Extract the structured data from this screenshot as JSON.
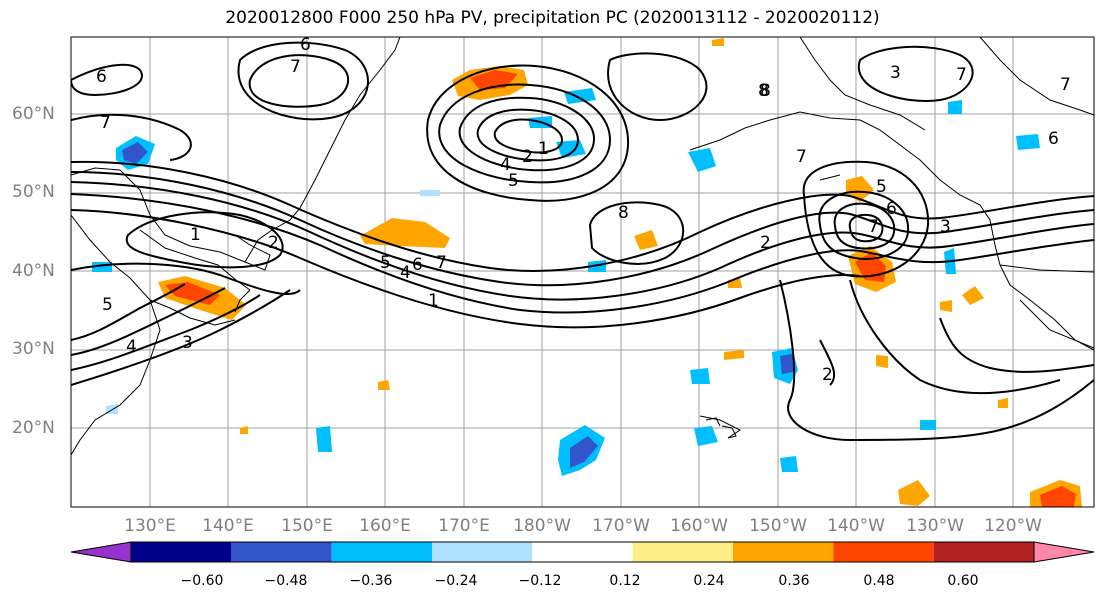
{
  "title": "2020012800 F000 250 hPa PV, precipitation PC (2020013112 - 2020020112)",
  "lat_labels": [
    "60°N",
    "50°N",
    "40°N",
    "30°N",
    "20°N"
  ],
  "lon_labels": [
    "130°E",
    "140°E",
    "150°E",
    "160°E",
    "170°E",
    "180°W",
    "170°W",
    "160°W",
    "150°W",
    "140°W",
    "130°W",
    "120°W"
  ],
  "colorbar": {
    "ticks": [
      "−0.60",
      "−0.48",
      "−0.36",
      "−0.24",
      "−0.12",
      "0.12",
      "0.24",
      "0.36",
      "0.48",
      "0.60"
    ],
    "colors": [
      "#9932CC",
      "#00008B",
      "#3355CC",
      "#00BFFF",
      "#B0E2FF",
      "#FFFFFF",
      "#FFEE88",
      "#FFA500",
      "#FF4500",
      "#B22222",
      "#FF88AA"
    ]
  },
  "contour_labels": [
    "6",
    "7",
    "6",
    "7",
    "1",
    "2",
    "4",
    "5",
    "8",
    "7",
    "1",
    "5",
    "4",
    "3",
    "2",
    "5",
    "4",
    "6",
    "7",
    "1",
    "8",
    "2",
    "5",
    "6",
    "7",
    "3",
    "2",
    "3",
    "7",
    "6",
    "7",
    "8"
  ]
}
